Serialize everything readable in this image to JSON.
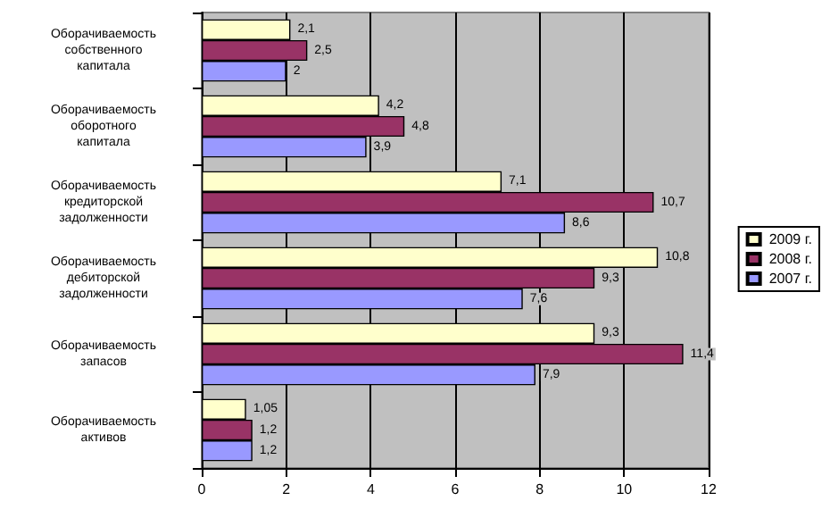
{
  "chart_data": {
    "type": "bar",
    "orientation": "horizontal",
    "categories": [
      "Оборачиваемость собственного капитала",
      "Оборачиваемость оборотного капитала",
      "Оборачиваемость кредиторской задолженности",
      "Оборачиваемость дебиторской задолженности",
      "Оборачиваемость запасов",
      "Оборачиваемость активов"
    ],
    "series": [
      {
        "name": "2009 г.",
        "color": "#ffffcc",
        "values": [
          2.1,
          4.2,
          7.1,
          10.8,
          9.3,
          1.05
        ],
        "value_labels": [
          "2,1",
          "4,2",
          "7,1",
          "10,8",
          "9,3",
          "1,05"
        ]
      },
      {
        "name": "2008 г.",
        "color": "#993366",
        "values": [
          2.5,
          4.8,
          10.7,
          9.3,
          11.4,
          1.2
        ],
        "value_labels": [
          "2,5",
          "4,8",
          "10,7",
          "9,3",
          "11,4",
          "1,2"
        ]
      },
      {
        "name": "2007 г.",
        "color": "#9999ff",
        "values": [
          2,
          3.9,
          8.6,
          7.6,
          7.9,
          1.2
        ],
        "value_labels": [
          "2",
          "3,9",
          "8,6",
          "7,6",
          "7,9",
          "1,2"
        ]
      }
    ],
    "xlim": [
      0,
      12
    ],
    "xticks": [
      0,
      2,
      4,
      6,
      8,
      10,
      12
    ],
    "grid": "x",
    "legend": "right"
  }
}
